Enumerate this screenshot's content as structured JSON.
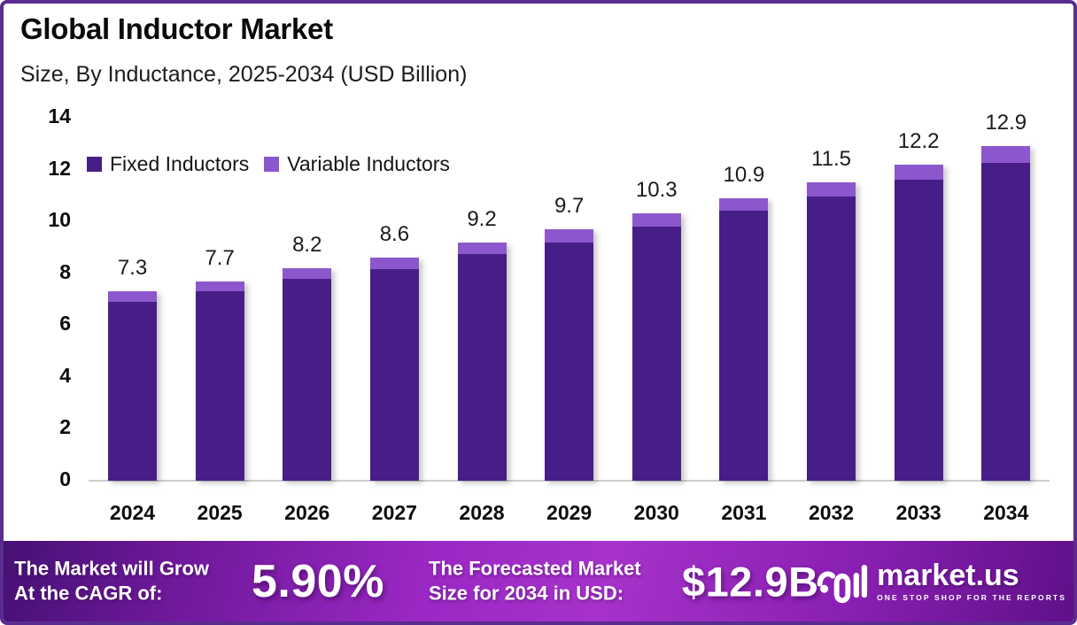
{
  "header": {
    "title": "Global Inductor Market",
    "subtitle": "Size, By Inductance, 2025-2034 (USD Billion)"
  },
  "chart_data": {
    "type": "bar",
    "stacked": true,
    "title": "Global Inductor Market",
    "subtitle": "Size, By Inductance, 2025-2034 (USD Billion)",
    "unit": "USD Billion",
    "categories": [
      "2024",
      "2025",
      "2026",
      "2027",
      "2028",
      "2029",
      "2030",
      "2031",
      "2032",
      "2033",
      "2034"
    ],
    "series": [
      {
        "name": "Fixed Inductors",
        "color": "#471d87",
        "values": [
          6.9,
          7.3,
          7.8,
          8.15,
          8.75,
          9.2,
          9.8,
          10.4,
          10.95,
          11.6,
          12.25
        ]
      },
      {
        "name": "Variable Inductors",
        "color": "#8c57cd",
        "values": [
          0.4,
          0.4,
          0.4,
          0.45,
          0.45,
          0.5,
          0.5,
          0.5,
          0.55,
          0.6,
          0.65
        ]
      }
    ],
    "totals": [
      7.3,
      7.7,
      8.2,
      8.6,
      9.2,
      9.7,
      10.3,
      10.9,
      11.5,
      12.2,
      12.9
    ],
    "bar_labels": [
      "7.3",
      "7.7",
      "8.2",
      "8.6",
      "9.2",
      "9.7",
      "10.3",
      "10.9",
      "11.5",
      "12.2",
      "12.9"
    ],
    "ylim": [
      0,
      14
    ],
    "yticks": [
      0,
      2,
      4,
      6,
      8,
      10,
      12,
      14
    ],
    "grid": false,
    "legend_position": "top-left",
    "axis_color": "#cdcdcd"
  },
  "banner": {
    "cagr_label_line1": "The Market will Grow",
    "cagr_label_line2": "At the CAGR of:",
    "cagr_value": "5.90%",
    "forecast_label_line1": "The Forecasted Market",
    "forecast_label_line2": "Size for 2034 in USD:",
    "forecast_value": "$12.9B",
    "logo_text": "market.us",
    "logo_tagline": "ONE STOP SHOP FOR THE REPORTS"
  },
  "colors": {
    "frame_border": "#5b2c90",
    "fixed_inductors": "#471d87",
    "variable_inductors": "#8c57cd",
    "banner_center": "#a632cb",
    "banner_edge": "#451173"
  }
}
